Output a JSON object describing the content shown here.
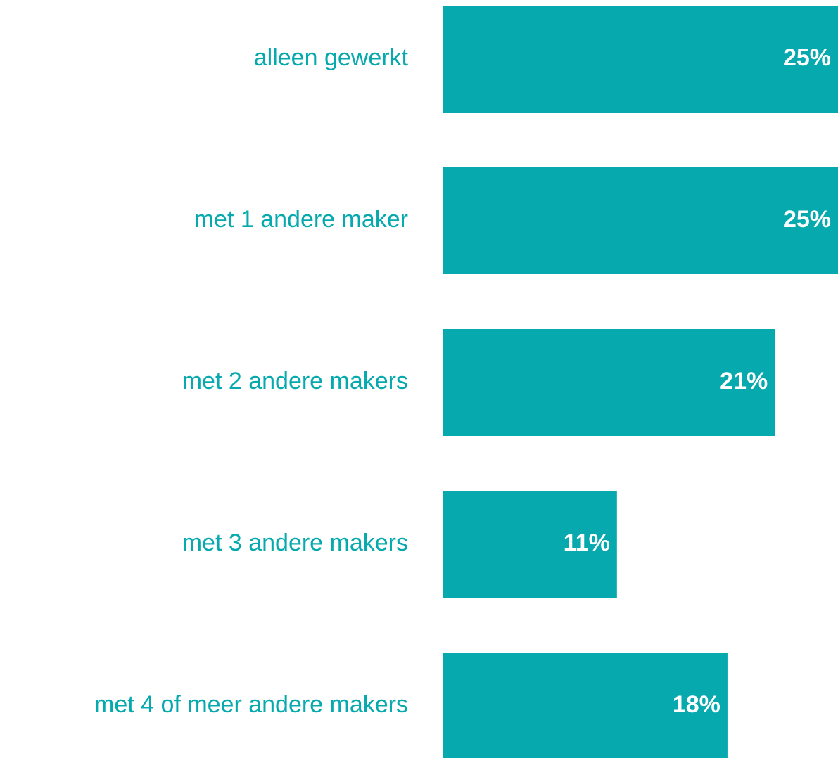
{
  "chart_data": {
    "type": "bar",
    "orientation": "horizontal",
    "categories": [
      "alleen gewerkt",
      "met 1 andere maker",
      "met 2 andere makers",
      "met 3 andere makers",
      "met 4 of meer andere makers"
    ],
    "values": [
      25,
      25,
      21,
      11,
      18
    ],
    "value_labels": [
      "25%",
      "25%",
      "21%",
      "11%",
      "18%"
    ],
    "color": "#06a9ad",
    "label_color": "#06a9ad"
  }
}
